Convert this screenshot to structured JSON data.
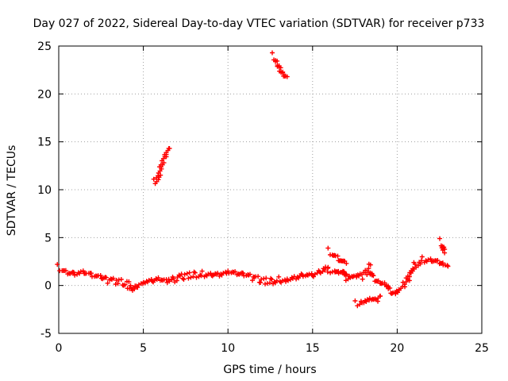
{
  "chart_data": {
    "type": "scatter",
    "title": "Day 027 of 2022, Sidereal Day-to-day VTEC variation (SDTVAR) for receiver p733",
    "xlabel": "GPS time / hours",
    "ylabel": "SDTVAR / TECUs",
    "xlim": [
      0,
      25
    ],
    "ylim": [
      -5,
      25
    ],
    "x_ticks": [
      0,
      5,
      10,
      15,
      20,
      25
    ],
    "y_ticks": [
      -5,
      0,
      5,
      10,
      15,
      20,
      25
    ],
    "grid": true,
    "marker": "+",
    "series": [
      {
        "name": "SDTVAR",
        "color": "#ff0000",
        "segments": [
          {
            "x": [
              0.0,
              0.5,
              1.0,
              1.5,
              2.0,
              2.5,
              3.0,
              3.5,
              4.0,
              4.3,
              4.6,
              5.0,
              5.5,
              6.0,
              6.5,
              7.0,
              7.5,
              8.0,
              8.5,
              9.0,
              9.5,
              10.0,
              10.5,
              11.0,
              11.5,
              12.0,
              12.5,
              13.0,
              13.5,
              14.0,
              14.5,
              15.0,
              15.5,
              15.9
            ],
            "y": [
              1.9,
              1.5,
              1.3,
              1.4,
              1.0,
              0.7,
              0.5,
              0.4,
              0.2,
              -0.3,
              0.1,
              0.4,
              0.5,
              0.6,
              0.3,
              0.8,
              1.0,
              1.1,
              1.2,
              1.3,
              1.2,
              1.4,
              1.2,
              1.0,
              0.8,
              0.5,
              0.4,
              0.6,
              0.7,
              0.9,
              1.1,
              1.0,
              1.3,
              1.8
            ]
          },
          {
            "x": [
              16.0,
              16.3,
              16.6,
              16.8,
              17.0,
              17.3,
              17.6,
              18.0,
              18.3,
              18.6,
              19.0,
              19.3,
              19.6,
              19.9,
              20.2,
              20.5,
              20.8,
              21.0,
              21.5,
              22.0,
              22.5,
              22.8,
              23.0
            ],
            "y": [
              1.6,
              1.7,
              1.5,
              1.6,
              0.6,
              0.9,
              0.8,
              1.0,
              2.0,
              0.8,
              0.5,
              0.3,
              -0.7,
              -0.8,
              -0.5,
              0.3,
              1.2,
              2.0,
              2.7,
              2.8,
              2.5,
              2.3,
              2.0
            ]
          },
          {
            "x": [
              16.0,
              16.5,
              17.0
            ],
            "y": [
              3.6,
              2.9,
              2.3
            ]
          },
          {
            "x": [
              17.6,
              18.0,
              18.4,
              18.8,
              19.0
            ],
            "y": [
              -1.9,
              -1.5,
              -1.3,
              -1.5,
              -1.1
            ]
          },
          {
            "x": [
              22.6,
              22.8
            ],
            "y": [
              4.6,
              3.4
            ]
          },
          {
            "x": [
              5.7,
              5.9,
              6.1,
              6.3,
              6.5
            ],
            "y": [
              10.8,
              11.6,
              12.6,
              13.6,
              14.3
            ]
          },
          {
            "x": [
              12.7,
              12.9,
              13.1,
              13.3,
              13.5
            ],
            "y": [
              24.0,
              23.3,
              22.6,
              22.0,
              21.8
            ]
          }
        ]
      }
    ]
  }
}
